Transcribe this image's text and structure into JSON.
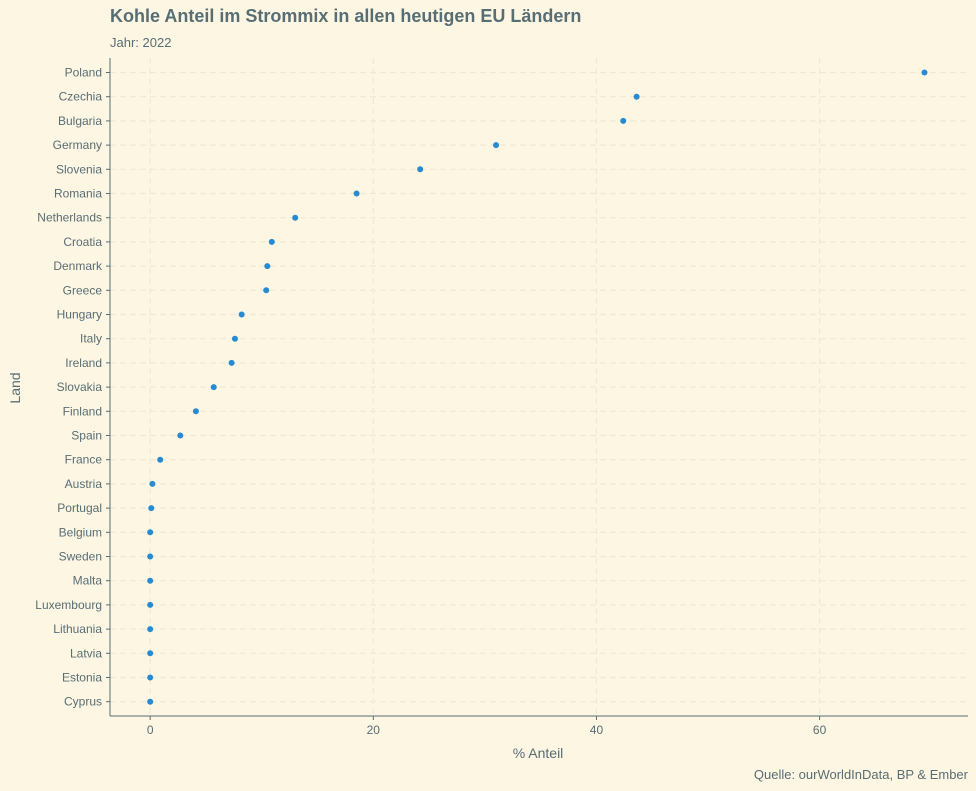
{
  "chart_data": {
    "type": "scatter",
    "title": "Kohle Anteil im Strommix in allen heutigen EU Ländern",
    "subtitle": "Jahr: 2022",
    "caption": "Quelle: ourWorldInData, BP & Ember",
    "xlabel": "% Anteil",
    "ylabel": "Land",
    "xlim": [
      -3.6,
      73.3
    ],
    "xticks": [
      0,
      20,
      40,
      60
    ],
    "grid": true,
    "point_color": "#268bd2",
    "categories": [
      "Poland",
      "Czechia",
      "Bulgaria",
      "Germany",
      "Slovenia",
      "Romania",
      "Netherlands",
      "Croatia",
      "Denmark",
      "Greece",
      "Hungary",
      "Italy",
      "Ireland",
      "Slovakia",
      "Finland",
      "Spain",
      "France",
      "Austria",
      "Portugal",
      "Belgium",
      "Sweden",
      "Malta",
      "Luxembourg",
      "Lithuania",
      "Latvia",
      "Estonia",
      "Cyprus"
    ],
    "values": [
      69.4,
      43.6,
      42.4,
      31.0,
      24.2,
      18.5,
      13.0,
      10.9,
      10.5,
      10.4,
      8.2,
      7.6,
      7.3,
      5.7,
      4.1,
      2.7,
      0.9,
      0.2,
      0.1,
      0.0,
      0.0,
      0.0,
      0.0,
      0.0,
      0.0,
      0.0,
      0.0
    ]
  }
}
